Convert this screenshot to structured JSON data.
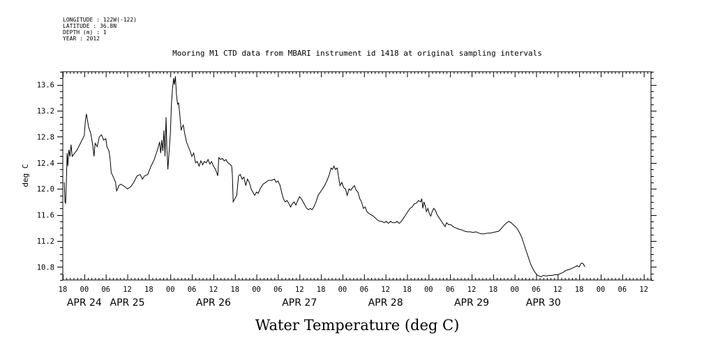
{
  "header": {
    "longitude": "LONGITUDE : 122W(-122)",
    "latitude": "LATITUDE : 36.8N",
    "depth": "DEPTH (m) : 1",
    "year": "YEAR : 2012"
  },
  "chart_data": {
    "type": "line",
    "title": "Mooring M1 CTD data from MBARI instrument id 1418 at original sampling intervals",
    "xlabel": "Water Temperature (deg C)",
    "ylabel": "deg C",
    "ylim": [
      10.6,
      13.8
    ],
    "yticks": [
      "10.8",
      "11.2",
      "11.6",
      "12.0",
      "12.4",
      "12.8",
      "13.2",
      "13.6"
    ],
    "xlim_hours_since_apr24_00": [
      -6,
      158
    ],
    "hour_ticks": [
      {
        "h": -6,
        "label": "18"
      },
      {
        "h": 0,
        "label": "00"
      },
      {
        "h": 6,
        "label": "06"
      },
      {
        "h": 12,
        "label": "12"
      },
      {
        "h": 18,
        "label": "18"
      },
      {
        "h": 24,
        "label": "00"
      },
      {
        "h": 30,
        "label": "06"
      },
      {
        "h": 36,
        "label": "12"
      },
      {
        "h": 42,
        "label": "18"
      },
      {
        "h": 48,
        "label": "00"
      },
      {
        "h": 54,
        "label": "06"
      },
      {
        "h": 60,
        "label": "12"
      },
      {
        "h": 66,
        "label": "18"
      },
      {
        "h": 72,
        "label": "00"
      },
      {
        "h": 78,
        "label": "06"
      },
      {
        "h": 84,
        "label": "12"
      },
      {
        "h": 90,
        "label": "18"
      },
      {
        "h": 96,
        "label": "00"
      },
      {
        "h": 102,
        "label": "06"
      },
      {
        "h": 108,
        "label": "12"
      },
      {
        "h": 114,
        "label": "18"
      },
      {
        "h": 120,
        "label": "00"
      },
      {
        "h": 126,
        "label": "06"
      },
      {
        "h": 132,
        "label": "12"
      },
      {
        "h": 138,
        "label": "18"
      },
      {
        "h": 144,
        "label": "00"
      },
      {
        "h": 150,
        "label": "06"
      },
      {
        "h": 156,
        "label": "12"
      }
    ],
    "day_labels": [
      {
        "h": 0,
        "label": "APR 24"
      },
      {
        "h": 12,
        "label": "APR 25"
      },
      {
        "h": 36,
        "label": "APR 26"
      },
      {
        "h": 60,
        "label": "APR 27"
      },
      {
        "h": 84,
        "label": "APR 28"
      },
      {
        "h": 108,
        "label": "APR 29"
      },
      {
        "h": 128,
        "label": "APR 30"
      }
    ],
    "series": [
      {
        "points": [
          [
            -5.6,
            12.1
          ],
          [
            -5.4,
            11.8
          ],
          [
            -5.2,
            11.78
          ],
          [
            -5.0,
            12.1
          ],
          [
            -4.8,
            12.55
          ],
          [
            -4.6,
            12.35
          ],
          [
            -4.3,
            12.6
          ],
          [
            -4.0,
            12.5
          ],
          [
            -3.7,
            12.68
          ],
          [
            -3.4,
            12.5
          ],
          [
            -2.0,
            12.6
          ],
          [
            0.0,
            12.82
          ],
          [
            0.3,
            13.05
          ],
          [
            0.6,
            13.15
          ],
          [
            1.2,
            12.95
          ],
          [
            1.8,
            12.85
          ],
          [
            2.4,
            12.65
          ],
          [
            2.7,
            12.5
          ],
          [
            3.0,
            12.7
          ],
          [
            3.6,
            12.65
          ],
          [
            4.2,
            12.8
          ],
          [
            4.8,
            12.83
          ],
          [
            5.4,
            12.75
          ],
          [
            6.0,
            12.77
          ],
          [
            6.3,
            12.65
          ],
          [
            6.9,
            12.58
          ],
          [
            7.2,
            12.45
          ],
          [
            7.5,
            12.25
          ],
          [
            8.1,
            12.18
          ],
          [
            8.7,
            12.1
          ],
          [
            9.0,
            11.97
          ],
          [
            9.3,
            12.0
          ],
          [
            9.6,
            12.05
          ],
          [
            10.2,
            12.07
          ],
          [
            10.8,
            12.05
          ],
          [
            11.4,
            12.03
          ],
          [
            12.0,
            12.0
          ],
          [
            12.9,
            12.03
          ],
          [
            13.8,
            12.1
          ],
          [
            14.7,
            12.2
          ],
          [
            15.6,
            12.22
          ],
          [
            16.2,
            12.15
          ],
          [
            16.8,
            12.2
          ],
          [
            17.7,
            12.22
          ],
          [
            18.6,
            12.35
          ],
          [
            19.5,
            12.45
          ],
          [
            20.4,
            12.6
          ],
          [
            21.0,
            12.72
          ],
          [
            21.3,
            12.55
          ],
          [
            21.6,
            12.75
          ],
          [
            21.9,
            12.58
          ],
          [
            22.2,
            12.9
          ],
          [
            22.5,
            12.5
          ],
          [
            22.8,
            13.1
          ],
          [
            23.0,
            12.65
          ],
          [
            23.3,
            12.3
          ],
          [
            23.6,
            12.55
          ],
          [
            24.0,
            12.85
          ],
          [
            24.3,
            13.3
          ],
          [
            24.6,
            13.55
          ],
          [
            24.9,
            13.7
          ],
          [
            25.1,
            13.6
          ],
          [
            25.4,
            13.73
          ],
          [
            25.7,
            13.45
          ],
          [
            26.0,
            13.3
          ],
          [
            26.3,
            13.32
          ],
          [
            26.6,
            13.15
          ],
          [
            27.0,
            12.9
          ],
          [
            27.3,
            12.95
          ],
          [
            27.6,
            12.98
          ],
          [
            28.0,
            12.85
          ],
          [
            28.5,
            12.72
          ],
          [
            29.0,
            12.65
          ],
          [
            29.5,
            12.58
          ],
          [
            30.0,
            12.5
          ],
          [
            30.5,
            12.55
          ],
          [
            31.0,
            12.4
          ],
          [
            31.5,
            12.42
          ],
          [
            32.0,
            12.35
          ],
          [
            32.5,
            12.43
          ],
          [
            33.0,
            12.37
          ],
          [
            33.5,
            12.42
          ],
          [
            34.0,
            12.4
          ],
          [
            34.5,
            12.45
          ],
          [
            35.0,
            12.38
          ],
          [
            35.5,
            12.42
          ],
          [
            36.0,
            12.35
          ],
          [
            36.6,
            12.3
          ],
          [
            37.2,
            12.2
          ],
          [
            37.5,
            12.48
          ],
          [
            38.0,
            12.45
          ],
          [
            38.5,
            12.47
          ],
          [
            39.0,
            12.43
          ],
          [
            39.5,
            12.45
          ],
          [
            40.0,
            12.4
          ],
          [
            40.6,
            12.38
          ],
          [
            41.1,
            12.35
          ],
          [
            41.3,
            12.2
          ],
          [
            41.5,
            11.8
          ],
          [
            42.0,
            11.85
          ],
          [
            42.5,
            11.9
          ],
          [
            43.0,
            12.2
          ],
          [
            43.5,
            12.22
          ],
          [
            44.0,
            12.15
          ],
          [
            44.5,
            12.18
          ],
          [
            45.0,
            12.05
          ],
          [
            45.5,
            12.15
          ],
          [
            46.0,
            12.1
          ],
          [
            46.5,
            12.0
          ],
          [
            47.0,
            11.95
          ],
          [
            47.5,
            11.9
          ],
          [
            48.0,
            11.95
          ],
          [
            48.5,
            11.93
          ],
          [
            49.0,
            12.0
          ],
          [
            49.8,
            12.07
          ],
          [
            50.6,
            12.1
          ],
          [
            51.4,
            12.13
          ],
          [
            52.2,
            12.13
          ],
          [
            53.0,
            12.15
          ],
          [
            53.5,
            12.1
          ],
          [
            54.0,
            12.12
          ],
          [
            54.6,
            12.05
          ],
          [
            55.0,
            11.95
          ],
          [
            55.5,
            11.85
          ],
          [
            56.0,
            11.8
          ],
          [
            56.5,
            11.82
          ],
          [
            57.0,
            11.78
          ],
          [
            57.5,
            11.72
          ],
          [
            58.0,
            11.77
          ],
          [
            58.5,
            11.8
          ],
          [
            59.0,
            11.75
          ],
          [
            59.5,
            11.82
          ],
          [
            60.0,
            11.88
          ],
          [
            60.5,
            11.85
          ],
          [
            61.0,
            11.8
          ],
          [
            61.5,
            11.75
          ],
          [
            62.0,
            11.7
          ],
          [
            62.5,
            11.68
          ],
          [
            63.0,
            11.7
          ],
          [
            63.5,
            11.68
          ],
          [
            64.0,
            11.72
          ],
          [
            64.6,
            11.8
          ],
          [
            65.2,
            11.9
          ],
          [
            65.8,
            11.95
          ],
          [
            66.4,
            12.0
          ],
          [
            67.0,
            12.05
          ],
          [
            67.6,
            12.12
          ],
          [
            68.2,
            12.2
          ],
          [
            68.8,
            12.32
          ],
          [
            69.2,
            12.3
          ],
          [
            69.6,
            12.35
          ],
          [
            70.0,
            12.3
          ],
          [
            70.5,
            12.32
          ],
          [
            71.0,
            12.15
          ],
          [
            71.3,
            12.05
          ],
          [
            71.8,
            12.1
          ],
          [
            72.3,
            12.02
          ],
          [
            72.8,
            12.0
          ],
          [
            73.3,
            11.9
          ],
          [
            73.8,
            12.0
          ],
          [
            74.3,
            11.98
          ],
          [
            74.8,
            12.02
          ],
          [
            75.3,
            12.05
          ],
          [
            75.8,
            11.98
          ],
          [
            76.3,
            11.95
          ],
          [
            76.8,
            11.85
          ],
          [
            77.3,
            11.8
          ],
          [
            77.8,
            11.7
          ],
          [
            78.3,
            11.72
          ],
          [
            78.8,
            11.65
          ],
          [
            79.4,
            11.62
          ],
          [
            80.0,
            11.6
          ],
          [
            80.6,
            11.58
          ],
          [
            81.2,
            11.55
          ],
          [
            81.8,
            11.52
          ],
          [
            82.4,
            11.5
          ],
          [
            83.0,
            11.5
          ],
          [
            83.6,
            11.48
          ],
          [
            84.2,
            11.5
          ],
          [
            84.8,
            11.47
          ],
          [
            85.4,
            11.5
          ],
          [
            86.0,
            11.48
          ],
          [
            86.6,
            11.48
          ],
          [
            87.2,
            11.5
          ],
          [
            87.8,
            11.47
          ],
          [
            88.4,
            11.5
          ],
          [
            89.0,
            11.55
          ],
          [
            89.6,
            11.6
          ],
          [
            90.2,
            11.65
          ],
          [
            90.8,
            11.7
          ],
          [
            91.4,
            11.72
          ],
          [
            92.0,
            11.77
          ],
          [
            92.6,
            11.78
          ],
          [
            93.2,
            11.82
          ],
          [
            93.8,
            11.8
          ],
          [
            94.1,
            11.85
          ],
          [
            94.4,
            11.7
          ],
          [
            94.7,
            11.8
          ],
          [
            95.0,
            11.75
          ],
          [
            95.4,
            11.65
          ],
          [
            95.8,
            11.7
          ],
          [
            96.2,
            11.62
          ],
          [
            96.6,
            11.58
          ],
          [
            97.0,
            11.65
          ],
          [
            97.4,
            11.7
          ],
          [
            97.8,
            11.68
          ],
          [
            98.4,
            11.6
          ],
          [
            99.0,
            11.55
          ],
          [
            99.6,
            11.5
          ],
          [
            100.2,
            11.45
          ],
          [
            100.6,
            11.42
          ],
          [
            101.0,
            11.48
          ],
          [
            101.6,
            11.45
          ],
          [
            102.2,
            11.45
          ],
          [
            102.8,
            11.42
          ],
          [
            103.6,
            11.4
          ],
          [
            104.4,
            11.38
          ],
          [
            105.2,
            11.37
          ],
          [
            106.0,
            11.35
          ],
          [
            106.8,
            11.34
          ],
          [
            107.6,
            11.34
          ],
          [
            108.4,
            11.33
          ],
          [
            109.2,
            11.34
          ],
          [
            110.0,
            11.32
          ],
          [
            110.8,
            11.31
          ],
          [
            111.6,
            11.31
          ],
          [
            112.4,
            11.32
          ],
          [
            113.2,
            11.32
          ],
          [
            114.0,
            11.33
          ],
          [
            114.8,
            11.34
          ],
          [
            115.6,
            11.35
          ],
          [
            116.4,
            11.4
          ],
          [
            117.2,
            11.45
          ],
          [
            117.8,
            11.48
          ],
          [
            118.4,
            11.5
          ],
          [
            119.0,
            11.48
          ],
          [
            119.6,
            11.45
          ],
          [
            120.2,
            11.42
          ],
          [
            120.8,
            11.38
          ],
          [
            121.4,
            11.32
          ],
          [
            122.0,
            11.25
          ],
          [
            122.6,
            11.15
          ],
          [
            123.2,
            11.05
          ],
          [
            123.8,
            10.95
          ],
          [
            124.4,
            10.85
          ],
          [
            125.0,
            10.78
          ],
          [
            125.6,
            10.72
          ],
          [
            126.2,
            10.68
          ],
          [
            126.8,
            10.66
          ],
          [
            127.4,
            10.65
          ],
          [
            128.0,
            10.67
          ],
          [
            128.8,
            10.66
          ],
          [
            129.6,
            10.67
          ],
          [
            130.4,
            10.67
          ],
          [
            131.2,
            10.68
          ],
          [
            132.0,
            10.68
          ],
          [
            132.8,
            10.7
          ],
          [
            133.6,
            10.72
          ],
          [
            134.4,
            10.75
          ],
          [
            135.2,
            10.76
          ],
          [
            136.0,
            10.78
          ],
          [
            136.8,
            10.8
          ],
          [
            137.4,
            10.82
          ],
          [
            138.0,
            10.8
          ],
          [
            138.4,
            10.85
          ],
          [
            138.8,
            10.86
          ],
          [
            139.2,
            10.84
          ],
          [
            139.6,
            10.8
          ]
        ]
      }
    ]
  }
}
